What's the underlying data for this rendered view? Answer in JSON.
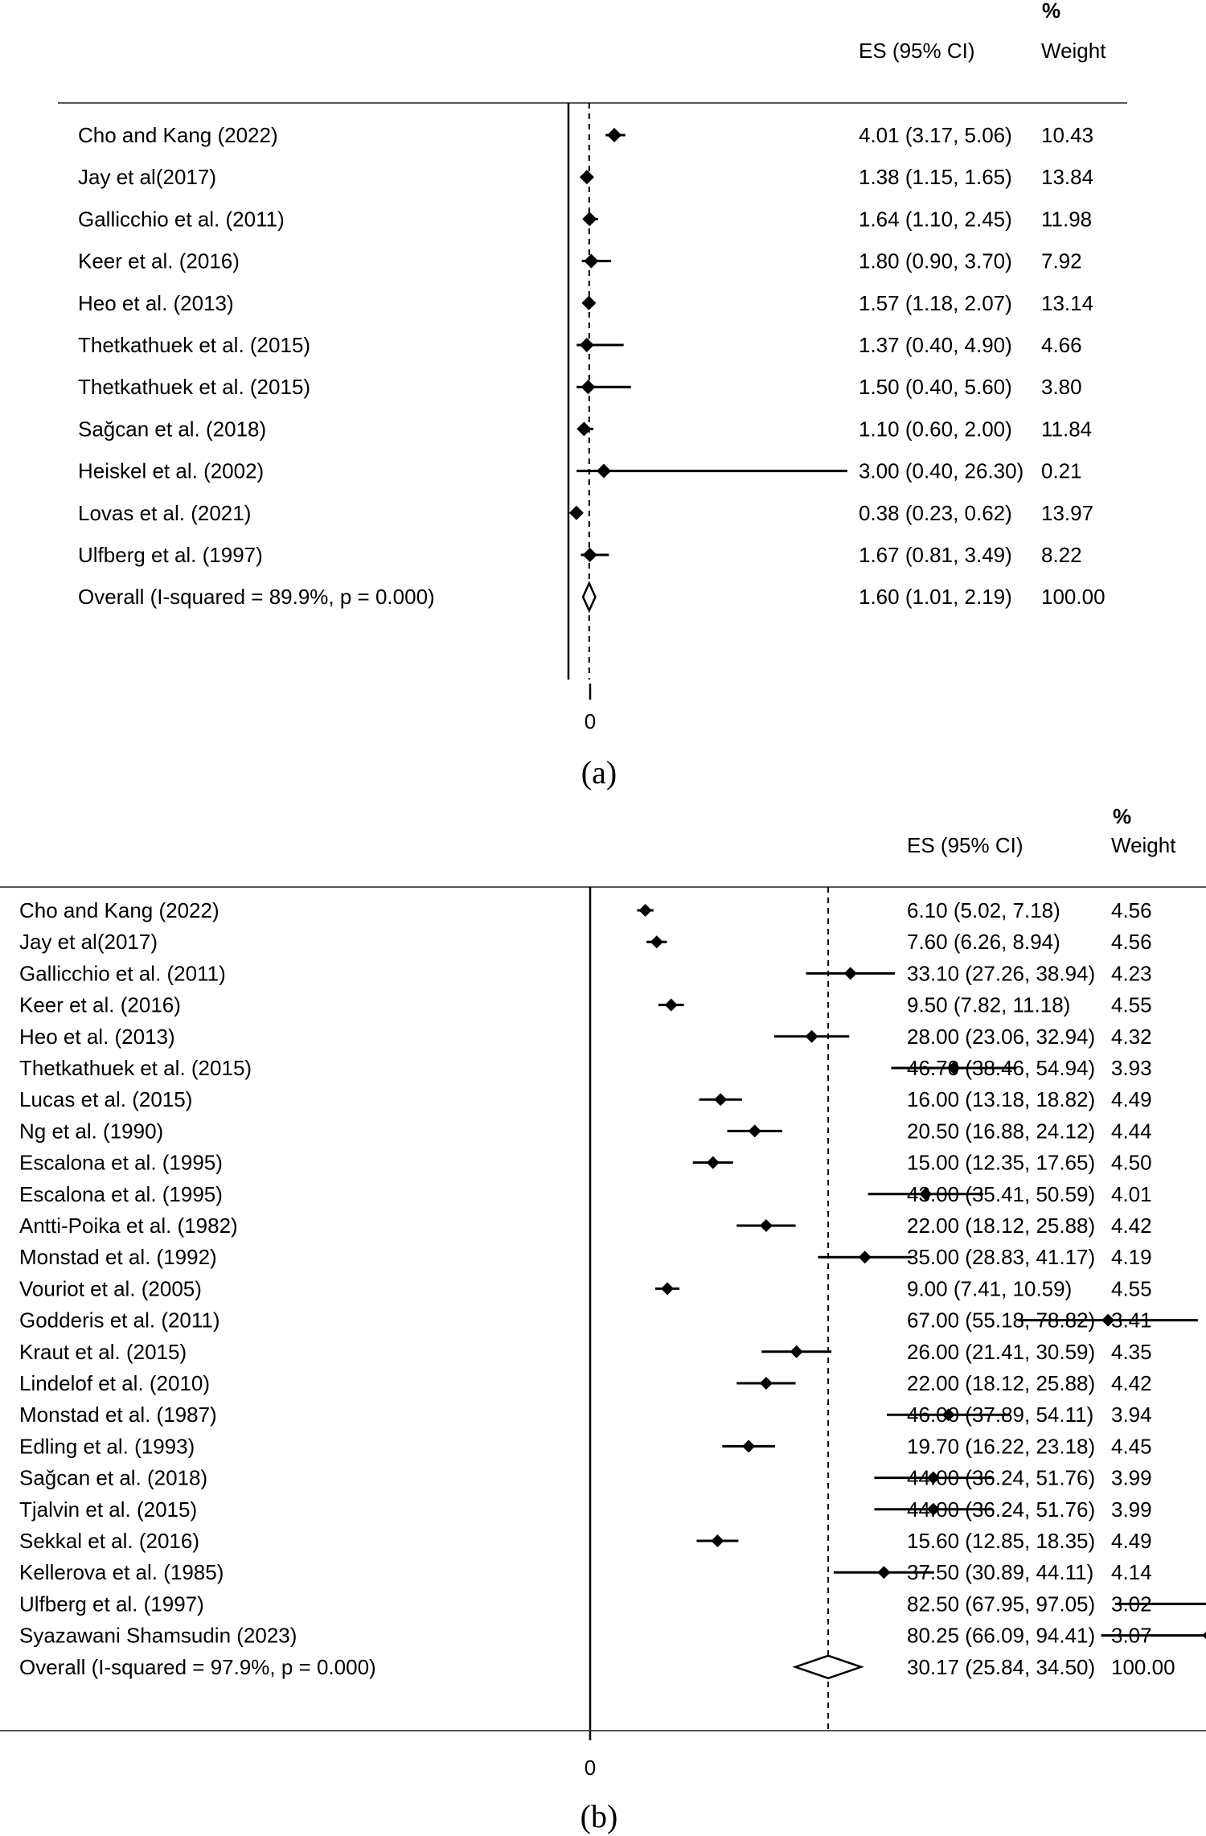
{
  "chart_data": [
    {
      "type": "forest",
      "panel_caption": "(a)",
      "header": {
        "percent_symbol": "%",
        "es_label": "ES (95% CI)",
        "weight_label": "Weight"
      },
      "axis": {
        "null_value": 0,
        "tick_labels": [
          "0"
        ],
        "xlim": [
          -0.2,
          26.3
        ]
      },
      "studies": [
        {
          "label": "Cho and Kang (2022)",
          "es": 4.01,
          "lo": 3.17,
          "hi": 5.06,
          "ci_text": "4.01 (3.17, 5.06)",
          "weight": "10.43"
        },
        {
          "label": "Jay et al(2017)",
          "es": 1.38,
          "lo": 1.15,
          "hi": 1.65,
          "ci_text": "1.38 (1.15, 1.65)",
          "weight": "13.84"
        },
        {
          "label": "Gallicchio et al. (2011)",
          "es": 1.64,
          "lo": 1.1,
          "hi": 2.45,
          "ci_text": "1.64 (1.10, 2.45)",
          "weight": "11.98"
        },
        {
          "label": "Keer et al. (2016)",
          "es": 1.8,
          "lo": 0.9,
          "hi": 3.7,
          "ci_text": "1.80 (0.90, 3.70)",
          "weight": "7.92"
        },
        {
          "label": "Heo et al. (2013)",
          "es": 1.57,
          "lo": 1.18,
          "hi": 2.07,
          "ci_text": "1.57 (1.18, 2.07)",
          "weight": "13.14"
        },
        {
          "label": "Thetkathuek et al. (2015)",
          "es": 1.37,
          "lo": 0.4,
          "hi": 4.9,
          "ci_text": "1.37 (0.40, 4.90)",
          "weight": "4.66"
        },
        {
          "label": "Thetkathuek et al. (2015)",
          "es": 1.5,
          "lo": 0.4,
          "hi": 5.6,
          "ci_text": "1.50 (0.40, 5.60)",
          "weight": "3.80"
        },
        {
          "label": "Sağcan et al. (2018)",
          "es": 1.1,
          "lo": 0.6,
          "hi": 2.0,
          "ci_text": "1.10 (0.60, 2.00)",
          "weight": "11.84"
        },
        {
          "label": "Heiskel et al. (2002)",
          "es": 3.0,
          "lo": 0.4,
          "hi": 26.3,
          "ci_text": "3.00 (0.40, 26.30)",
          "weight": "0.21"
        },
        {
          "label": "Lovas et al. (2021)",
          "es": 0.38,
          "lo": 0.23,
          "hi": 0.62,
          "ci_text": "0.38 (0.23, 0.62)",
          "weight": "13.97"
        },
        {
          "label": "Ulfberg et al. (1997)",
          "es": 1.67,
          "lo": 0.81,
          "hi": 3.49,
          "ci_text": "1.67 (0.81, 3.49)",
          "weight": "8.22"
        }
      ],
      "overall": {
        "label": "Overall  (I-squared = 89.9%, p = 0.000)",
        "es": 1.6,
        "lo": 1.01,
        "hi": 2.19,
        "ci_text": "1.60 (1.01, 2.19)",
        "weight": "100.00"
      }
    },
    {
      "type": "forest",
      "panel_caption": "(b)",
      "header": {
        "percent_symbol": "%",
        "es_label": "ES (95% CI)",
        "weight_label": "Weight"
      },
      "axis": {
        "null_value": 0,
        "tick_labels": [
          "0"
        ],
        "xlim": [
          0,
          97.05
        ]
      },
      "studies": [
        {
          "label": "Cho and Kang (2022)",
          "es": 6.1,
          "lo": 5.02,
          "hi": 7.18,
          "ci_text": "6.10 (5.02, 7.18)",
          "weight": "4.56"
        },
        {
          "label": "Jay et al(2017)",
          "es": 7.6,
          "lo": 6.26,
          "hi": 8.94,
          "ci_text": "7.60 (6.26, 8.94)",
          "weight": "4.56"
        },
        {
          "label": "Gallicchio et al. (2011)",
          "es": 33.1,
          "lo": 27.26,
          "hi": 38.94,
          "ci_text": "33.10 (27.26, 38.94)",
          "weight": "4.23"
        },
        {
          "label": "Keer et al. (2016)",
          "es": 9.5,
          "lo": 7.82,
          "hi": 11.18,
          "ci_text": "9.50 (7.82, 11.18)",
          "weight": "4.55"
        },
        {
          "label": "Heo et al. (2013)",
          "es": 28.0,
          "lo": 23.06,
          "hi": 32.94,
          "ci_text": "28.00 (23.06, 32.94)",
          "weight": "4.32"
        },
        {
          "label": "Thetkathuek et al. (2015)",
          "es": 46.7,
          "lo": 38.46,
          "hi": 54.94,
          "ci_text": "46.70 (38.46, 54.94)",
          "weight": "3.93"
        },
        {
          "label": "Lucas et al. (2015)",
          "es": 16.0,
          "lo": 13.18,
          "hi": 18.82,
          "ci_text": "16.00 (13.18, 18.82)",
          "weight": "4.49"
        },
        {
          "label": "Ng et al. (1990)",
          "es": 20.5,
          "lo": 16.88,
          "hi": 24.12,
          "ci_text": "20.50 (16.88, 24.12)",
          "weight": "4.44"
        },
        {
          "label": "Escalona et al. (1995)",
          "es": 15.0,
          "lo": 12.35,
          "hi": 17.65,
          "ci_text": "15.00 (12.35, 17.65)",
          "weight": "4.50"
        },
        {
          "label": "Escalona et al. (1995)",
          "es": 43.0,
          "lo": 35.41,
          "hi": 50.59,
          "ci_text": "43.00 (35.41, 50.59)",
          "weight": "4.01"
        },
        {
          "label": "Antti-Poika et al. (1982)",
          "es": 22.0,
          "lo": 18.12,
          "hi": 25.88,
          "ci_text": "22.00 (18.12, 25.88)",
          "weight": "4.42"
        },
        {
          "label": "Monstad et al. (1992)",
          "es": 35.0,
          "lo": 28.83,
          "hi": 41.17,
          "ci_text": "35.00 (28.83, 41.17)",
          "weight": "4.19"
        },
        {
          "label": "Vouriot et al. (2005)",
          "es": 9.0,
          "lo": 7.41,
          "hi": 10.59,
          "ci_text": "9.00 (7.41, 10.59)",
          "weight": "4.55"
        },
        {
          "label": "Godderis et al. (2011)",
          "es": 67.0,
          "lo": 55.18,
          "hi": 78.82,
          "ci_text": "67.00 (55.18, 78.82)",
          "weight": "3.41"
        },
        {
          "label": "Kraut et al. (2015)",
          "es": 26.0,
          "lo": 21.41,
          "hi": 30.59,
          "ci_text": "26.00 (21.41, 30.59)",
          "weight": "4.35"
        },
        {
          "label": "Lindelof et al. (2010)",
          "es": 22.0,
          "lo": 18.12,
          "hi": 25.88,
          "ci_text": "22.00 (18.12, 25.88)",
          "weight": "4.42"
        },
        {
          "label": "Monstad et al. (1987)",
          "es": 46.0,
          "lo": 37.89,
          "hi": 54.11,
          "ci_text": "46.00 (37.89, 54.11)",
          "weight": "3.94"
        },
        {
          "label": "Edling et al. (1993)",
          "es": 19.7,
          "lo": 16.22,
          "hi": 23.18,
          "ci_text": "19.70 (16.22, 23.18)",
          "weight": "4.45"
        },
        {
          "label": "Sağcan et al. (2018)",
          "es": 44.0,
          "lo": 36.24,
          "hi": 51.76,
          "ci_text": "44.00 (36.24, 51.76)",
          "weight": "3.99"
        },
        {
          "label": "Tjalvin et al. (2015)",
          "es": 44.0,
          "lo": 36.24,
          "hi": 51.76,
          "ci_text": "44.00 (36.24, 51.76)",
          "weight": "3.99"
        },
        {
          "label": "Sekkal et al. (2016)",
          "es": 15.6,
          "lo": 12.85,
          "hi": 18.35,
          "ci_text": "15.60 (12.85, 18.35)",
          "weight": "4.49"
        },
        {
          "label": "Kellerova et al. (1985)",
          "es": 37.5,
          "lo": 30.89,
          "hi": 44.11,
          "ci_text": "37.50 (30.89, 44.11)",
          "weight": "4.14"
        },
        {
          "label": "Ulfberg et al. (1997)",
          "es": 82.5,
          "lo": 67.95,
          "hi": 97.05,
          "ci_text": "82.50 (67.95, 97.05)",
          "weight": "3.02"
        },
        {
          "label": "Syazawani Shamsudin (2023)",
          "es": 80.25,
          "lo": 66.09,
          "hi": 94.41,
          "ci_text": "80.25 (66.09, 94.41)",
          "weight": "3.07"
        }
      ],
      "overall": {
        "label": "Overall  (I-squared = 97.9%, p = 0.000)",
        "es": 30.17,
        "lo": 25.84,
        "hi": 34.5,
        "ci_text": "30.17 (25.84, 34.50)",
        "weight": "100.00"
      }
    }
  ]
}
